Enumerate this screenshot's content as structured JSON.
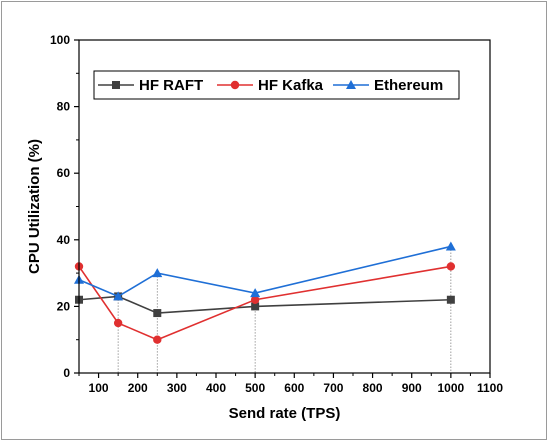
{
  "chart_data": {
    "type": "line",
    "xlabel": "Send rate (TPS)",
    "ylabel": "CPU Utilization (%)",
    "xlim": [
      50,
      1100
    ],
    "ylim": [
      0,
      100
    ],
    "xticks": [
      100,
      200,
      300,
      400,
      500,
      600,
      700,
      800,
      900,
      1000,
      1100
    ],
    "yticks": [
      0,
      20,
      40,
      60,
      80,
      100
    ],
    "grid": false,
    "legend_position": "top",
    "series": [
      {
        "name": "HF RAFT",
        "color": "#404040",
        "marker": "square",
        "x": [
          50,
          150,
          250,
          500,
          1000
        ],
        "y": [
          22,
          23,
          18,
          20,
          22
        ]
      },
      {
        "name": "HF Kafka",
        "color": "#e03030",
        "marker": "circle",
        "x": [
          50,
          150,
          250,
          500,
          1000
        ],
        "y": [
          32,
          15,
          10,
          22,
          32
        ]
      },
      {
        "name": "Ethereum",
        "color": "#1f6fd6",
        "marker": "triangle",
        "x": [
          50,
          150,
          250,
          500,
          1000
        ],
        "y": [
          28,
          23,
          30,
          24,
          38
        ]
      }
    ]
  }
}
